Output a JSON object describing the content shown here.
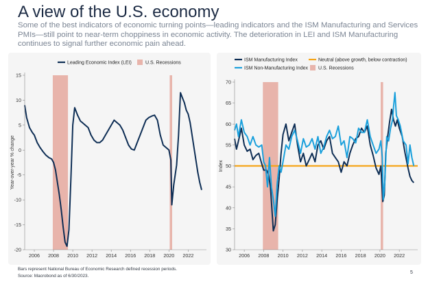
{
  "header": {
    "title": "A view of the U.S. economy",
    "subtitle": "Some of the best indicators of economic turning points—leading indicators and the ISM Manufacturing and Services PMIs—still point to near-term choppiness in economic activity. The deterioration in LEI and ISM Manufacturing continues to signal further economic pain ahead."
  },
  "footer": {
    "note": "Bars represent National Bureau of Economic Research defined recession periods.",
    "source": "Source: Macrobond as of 6/30/2023.",
    "page_number": "5"
  },
  "colors": {
    "navy": "#0d2d54",
    "light_blue": "#1aa0dc",
    "orange": "#f5a417",
    "recession": "#e8b4ab",
    "panel": "#f5f5f5"
  },
  "chart_data": [
    {
      "type": "line",
      "title": "",
      "xlabel": "",
      "ylabel": "Year-over-year % change",
      "xlim": [
        2005,
        2023.9
      ],
      "ylim": [
        -20,
        15
      ],
      "xticks": [
        2006,
        2008,
        2010,
        2012,
        2014,
        2016,
        2018,
        2020,
        2022
      ],
      "yticks": [
        -20,
        -15,
        -10,
        -5,
        0,
        5,
        10,
        15
      ],
      "grid": false,
      "legend": "top-center",
      "legend_entries": [
        "Leading Economic Index (LEI)",
        "U.S. Recessions"
      ],
      "recessions": [
        [
          2007.92,
          2009.5
        ],
        [
          2020.08,
          2020.33
        ]
      ],
      "series": [
        {
          "name": "Leading Economic Index (LEI)",
          "color": "#0d2d54",
          "x": [
            2005.0,
            2005.2,
            2005.5,
            2005.8,
            2006.0,
            2006.3,
            2006.6,
            2006.9,
            2007.2,
            2007.5,
            2007.8,
            2008.0,
            2008.2,
            2008.4,
            2008.6,
            2008.8,
            2009.0,
            2009.2,
            2009.4,
            2009.6,
            2009.8,
            2010.0,
            2010.2,
            2010.5,
            2010.8,
            2011.0,
            2011.3,
            2011.6,
            2011.9,
            2012.2,
            2012.5,
            2012.8,
            2013.1,
            2013.4,
            2013.7,
            2014.0,
            2014.3,
            2014.6,
            2014.9,
            2015.2,
            2015.5,
            2015.8,
            2016.1,
            2016.4,
            2016.7,
            2017.0,
            2017.3,
            2017.6,
            2017.9,
            2018.2,
            2018.5,
            2018.8,
            2019.1,
            2019.4,
            2019.7,
            2020.0,
            2020.2,
            2020.3,
            2020.5,
            2020.8,
            2021.0,
            2021.2,
            2021.4,
            2021.6,
            2021.8,
            2022.0,
            2022.2,
            2022.4,
            2022.6,
            2022.8,
            2023.0,
            2023.2,
            2023.4
          ],
          "values": [
            9,
            6.5,
            4.5,
            3.5,
            3,
            1.5,
            0.5,
            -0.3,
            -1,
            -1.5,
            -1.8,
            -2.5,
            -4,
            -6.5,
            -9,
            -12,
            -15.5,
            -18.5,
            -19.3,
            -16,
            -6,
            5,
            8.5,
            7,
            5.8,
            5.5,
            5,
            4.5,
            3,
            2,
            1.5,
            1.5,
            2,
            3,
            4,
            5,
            6,
            5.5,
            5,
            4,
            2.5,
            1,
            0.2,
            0,
            1.5,
            3,
            4.5,
            6,
            6.5,
            6.8,
            7,
            6,
            3,
            1,
            0.5,
            0,
            -2,
            -11,
            -7,
            -3,
            3,
            11.5,
            10.5,
            9.5,
            8,
            7.2,
            5.5,
            3,
            0.5,
            -2,
            -4.5,
            -6.5,
            -8
          ]
        }
      ]
    },
    {
      "type": "line",
      "title": "",
      "xlabel": "",
      "ylabel": "Index",
      "xlim": [
        2005,
        2023.9
      ],
      "ylim": [
        30,
        70
      ],
      "xticks": [
        2006,
        2008,
        2010,
        2012,
        2014,
        2016,
        2018,
        2020,
        2022
      ],
      "yticks": [
        30,
        35,
        40,
        45,
        50,
        55,
        60,
        65,
        70
      ],
      "grid": false,
      "legend": "top",
      "legend_entries": [
        "ISM Manufacturing Index",
        "Neutral (above growth, below contraction)",
        "ISM Non-Manufacturing Index",
        "U.S. Recessions"
      ],
      "recessions": [
        [
          2007.92,
          2009.5
        ],
        [
          2020.08,
          2020.33
        ]
      ],
      "neutral_level": 50,
      "series": [
        {
          "name": "ISM Manufacturing Index",
          "color": "#0d2d54",
          "x": [
            2005.0,
            2005.2,
            2005.4,
            2005.7,
            2006.0,
            2006.3,
            2006.6,
            2006.9,
            2007.2,
            2007.5,
            2007.8,
            2008.0,
            2008.3,
            2008.5,
            2008.7,
            2008.9,
            2009.0,
            2009.2,
            2009.4,
            2009.6,
            2009.8,
            2010.0,
            2010.3,
            2010.6,
            2010.9,
            2011.2,
            2011.5,
            2011.8,
            2012.1,
            2012.4,
            2012.7,
            2013.0,
            2013.3,
            2013.6,
            2013.9,
            2014.2,
            2014.5,
            2014.8,
            2015.1,
            2015.4,
            2015.7,
            2016.0,
            2016.3,
            2016.6,
            2016.9,
            2017.2,
            2017.5,
            2017.8,
            2018.1,
            2018.4,
            2018.7,
            2019.0,
            2019.3,
            2019.6,
            2019.9,
            2020.1,
            2020.3,
            2020.45,
            2020.6,
            2020.8,
            2021.0,
            2021.2,
            2021.4,
            2021.6,
            2021.8,
            2022.0,
            2022.3,
            2022.6,
            2022.9,
            2023.1,
            2023.3,
            2023.5
          ],
          "values": [
            56.5,
            54,
            56,
            59,
            55,
            53.5,
            54,
            51.5,
            52.5,
            53,
            50.5,
            49,
            49,
            48,
            45,
            38,
            34.5,
            36,
            42,
            47,
            53,
            57.5,
            60,
            56,
            58,
            60,
            55,
            51,
            53,
            50,
            51.5,
            53,
            51,
            55,
            56,
            54,
            56,
            57,
            53,
            52,
            51,
            48.5,
            51,
            50,
            53,
            55,
            56.5,
            57,
            59,
            58,
            59.5,
            55,
            52.5,
            49.5,
            48,
            50,
            41.5,
            43,
            53,
            57,
            60.5,
            63.5,
            61,
            59.5,
            61,
            59,
            57,
            53,
            49.5,
            47.5,
            46.5,
            46
          ]
        },
        {
          "name": "ISM Non-Manufacturing Index",
          "color": "#1aa0dc",
          "x": [
            2005.0,
            2005.2,
            2005.4,
            2005.7,
            2006.0,
            2006.3,
            2006.6,
            2006.9,
            2007.2,
            2007.5,
            2007.8,
            2008.0,
            2008.2,
            2008.4,
            2008.6,
            2008.8,
            2009.0,
            2009.2,
            2009.4,
            2009.6,
            2009.8,
            2010.0,
            2010.3,
            2010.6,
            2010.9,
            2011.2,
            2011.5,
            2011.8,
            2012.1,
            2012.4,
            2012.7,
            2013.0,
            2013.3,
            2013.6,
            2013.9,
            2014.2,
            2014.5,
            2014.8,
            2015.1,
            2015.4,
            2015.7,
            2016.0,
            2016.3,
            2016.6,
            2016.9,
            2017.2,
            2017.5,
            2017.8,
            2018.1,
            2018.4,
            2018.7,
            2019.0,
            2019.3,
            2019.6,
            2019.9,
            2020.1,
            2020.25,
            2020.35,
            2020.5,
            2020.7,
            2020.9,
            2021.1,
            2021.3,
            2021.4,
            2021.55,
            2021.7,
            2021.9,
            2022.1,
            2022.4,
            2022.7,
            2022.9,
            2023.1,
            2023.3,
            2023.5
          ],
          "values": [
            58.5,
            60,
            57,
            61,
            58,
            57,
            55,
            57,
            55,
            54.5,
            55,
            51,
            50,
            45,
            52,
            45,
            42,
            38,
            46,
            50,
            48.5,
            51,
            55,
            54,
            57,
            58.5,
            56,
            53,
            56.5,
            54.5,
            55,
            56.5,
            54,
            57,
            53,
            54.5,
            57,
            58.5,
            56.5,
            57,
            59.5,
            55,
            56,
            52,
            57,
            56.5,
            55.5,
            59,
            58,
            58,
            61,
            57,
            55,
            53,
            54,
            56,
            52,
            42,
            46,
            57,
            56,
            59,
            61,
            64,
            67.5,
            62,
            61,
            59.5,
            56,
            55,
            50.5,
            55,
            52,
            50
          ]
        },
        {
          "name": "Neutral (above growth, below contraction)",
          "color": "#f5a417",
          "x": [
            2005.0,
            2023.9
          ],
          "values": [
            50,
            50
          ]
        }
      ]
    }
  ]
}
